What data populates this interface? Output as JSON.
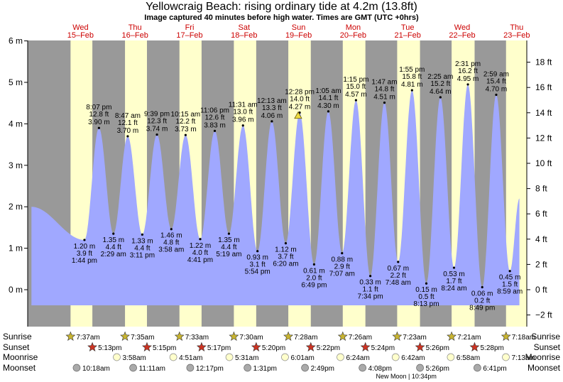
{
  "title": "Yellowcraig Beach: rising  ordinary tide at 4.2m (13.8ft)",
  "subtitle": "Image captured 40 minutes before high water. Times are GMT (UTC +0hrs)",
  "colors": {
    "night": "#999999",
    "day": "#ffffcc",
    "water": "#a0a8ff",
    "day_label": "#cc0000",
    "sun_marker": "#c8b430",
    "sunset_marker": "#cc3322",
    "moonrise_marker": "#ffffcc",
    "moonset_marker": "#aaaaaa"
  },
  "days": [
    {
      "weekday": "Wed",
      "date": "15–Feb"
    },
    {
      "weekday": "Thu",
      "date": "16–Feb"
    },
    {
      "weekday": "Fri",
      "date": "17–Feb"
    },
    {
      "weekday": "Sat",
      "date": "18–Feb"
    },
    {
      "weekday": "Sun",
      "date": "19–Feb"
    },
    {
      "weekday": "Mon",
      "date": "20–Feb"
    },
    {
      "weekday": "Tue",
      "date": "21–Feb"
    },
    {
      "weekday": "Wed",
      "date": "22–Feb"
    },
    {
      "weekday": "Thu",
      "date": "23–Feb"
    }
  ],
  "chart_data": {
    "type": "area",
    "title": "Yellowcraig Beach: rising  ordinary tide at 4.2m (13.8ft)",
    "left_axis": {
      "unit": "m",
      "ylim": [
        -0.75,
        6.0
      ],
      "ticks": [
        0,
        1,
        2,
        3,
        4,
        5,
        6
      ],
      "tick_labels": [
        "0 m",
        "1 m",
        "2 m",
        "3 m",
        "4 m",
        "5 m",
        "6 m"
      ]
    },
    "right_axis": {
      "unit": "ft",
      "ticks": [
        -2,
        0,
        2,
        4,
        6,
        8,
        10,
        12,
        14,
        16,
        18
      ],
      "tick_labels": [
        "−2 ft",
        "0 ft",
        "2 ft",
        "4 ft",
        "6 ft",
        "8 ft",
        "10 ft",
        "12 ft",
        "14 ft",
        "16 ft",
        "18 ft"
      ]
    },
    "x_range_days": [
      14.45,
      23.65
    ],
    "day_bands": [
      {
        "day": 15,
        "sunrise": "7:37am",
        "sunset": "5:13pm"
      },
      {
        "day": 16,
        "sunrise": "7:35am",
        "sunset": "5:15pm"
      },
      {
        "day": 17,
        "sunrise": "7:33am",
        "sunset": "5:17pm"
      },
      {
        "day": 18,
        "sunrise": "7:30am",
        "sunset": "5:20pm"
      },
      {
        "day": 19,
        "sunrise": "7:28am",
        "sunset": "5:22pm"
      },
      {
        "day": 20,
        "sunrise": "7:26am",
        "sunset": "5:24pm"
      },
      {
        "day": 21,
        "sunrise": "7:23am",
        "sunset": "5:26pm"
      },
      {
        "day": 22,
        "sunrise": "7:21am",
        "sunset": "5:28pm"
      },
      {
        "day": 23,
        "sunrise": "7:18am",
        "sunset": ""
      }
    ],
    "tides": [
      {
        "day": 15,
        "time": "1:44 pm",
        "hm": "13:44",
        "m": "1.20 m",
        "ft": "3.9 ft",
        "v": 1.2,
        "kind": "low"
      },
      {
        "day": 15,
        "time": "8:07 pm",
        "hm": "20:07",
        "m": "3.90 m",
        "ft": "12.8 ft",
        "v": 3.9,
        "kind": "high"
      },
      {
        "day": 16,
        "time": "2:29 am",
        "hm": "02:29",
        "m": "1.35 m",
        "ft": "4.4 ft",
        "v": 1.35,
        "kind": "low"
      },
      {
        "day": 16,
        "time": "8:47 am",
        "hm": "08:47",
        "m": "3.70 m",
        "ft": "12.1 ft",
        "v": 3.7,
        "kind": "high"
      },
      {
        "day": 16,
        "time": "3:11 pm",
        "hm": "15:11",
        "m": "1.33 m",
        "ft": "4.4 ft",
        "v": 1.33,
        "kind": "low"
      },
      {
        "day": 16,
        "time": "9:39 pm",
        "hm": "21:39",
        "m": "3.74 m",
        "ft": "12.3 ft",
        "v": 3.74,
        "kind": "high"
      },
      {
        "day": 17,
        "time": "3:58 am",
        "hm": "03:58",
        "m": "1.46 m",
        "ft": "4.8 ft",
        "v": 1.46,
        "kind": "low"
      },
      {
        "day": 17,
        "time": "10:15 am",
        "hm": "10:15",
        "m": "3.73 m",
        "ft": "12.2 ft",
        "v": 3.73,
        "kind": "high"
      },
      {
        "day": 17,
        "time": "4:41 pm",
        "hm": "16:41",
        "m": "1.22 m",
        "ft": "4.0 ft",
        "v": 1.22,
        "kind": "low"
      },
      {
        "day": 17,
        "time": "11:06 pm",
        "hm": "23:06",
        "m": "3.83 m",
        "ft": "12.6 ft",
        "v": 3.83,
        "kind": "high"
      },
      {
        "day": 18,
        "time": "5:19 am",
        "hm": "05:19",
        "m": "1.35 m",
        "ft": "4.4 ft",
        "v": 1.35,
        "kind": "low"
      },
      {
        "day": 18,
        "time": "11:31 am",
        "hm": "11:31",
        "m": "3.96 m",
        "ft": "13.0 ft",
        "v": 3.96,
        "kind": "high"
      },
      {
        "day": 18,
        "time": "5:54 pm",
        "hm": "17:54",
        "m": "0.93 m",
        "ft": "3.1 ft",
        "v": 0.93,
        "kind": "low"
      },
      {
        "day": 19,
        "time": "12:13 am",
        "hm": "00:13",
        "m": "4.06 m",
        "ft": "13.3 ft",
        "v": 4.06,
        "kind": "high"
      },
      {
        "day": 19,
        "time": "6:20 am",
        "hm": "06:20",
        "m": "1.12 m",
        "ft": "3.7 ft",
        "v": 1.12,
        "kind": "low"
      },
      {
        "day": 19,
        "time": "12:28 pm",
        "hm": "12:28",
        "m": "4.27 m",
        "ft": "14.0 ft",
        "v": 4.27,
        "kind": "high"
      },
      {
        "day": 19,
        "time": "6:49 pm",
        "hm": "18:49",
        "m": "0.61 m",
        "ft": "2.0 ft",
        "v": 0.61,
        "kind": "low"
      },
      {
        "day": 20,
        "time": "1:05 am",
        "hm": "01:05",
        "m": "4.30 m",
        "ft": "14.1 ft",
        "v": 4.3,
        "kind": "high"
      },
      {
        "day": 20,
        "time": "7:07 am",
        "hm": "07:07",
        "m": "0.88 m",
        "ft": "2.9 ft",
        "v": 0.88,
        "kind": "low"
      },
      {
        "day": 20,
        "time": "1:15 pm",
        "hm": "13:15",
        "m": "4.57 m",
        "ft": "15.0 ft",
        "v": 4.57,
        "kind": "high"
      },
      {
        "day": 20,
        "time": "7:34 pm",
        "hm": "19:34",
        "m": "0.33 m",
        "ft": "1.1 ft",
        "v": 0.33,
        "kind": "low"
      },
      {
        "day": 21,
        "time": "1:47 am",
        "hm": "01:47",
        "m": "4.51 m",
        "ft": "14.8 ft",
        "v": 4.51,
        "kind": "high"
      },
      {
        "day": 21,
        "time": "7:48 am",
        "hm": "07:48",
        "m": "0.67 m",
        "ft": "2.2 ft",
        "v": 0.67,
        "kind": "low"
      },
      {
        "day": 21,
        "time": "1:55 pm",
        "hm": "13:55",
        "m": "4.81 m",
        "ft": "15.8 ft",
        "v": 4.81,
        "kind": "high"
      },
      {
        "day": 21,
        "time": "8:13 pm",
        "hm": "20:13",
        "m": "0.15 m",
        "ft": "0.5 ft",
        "v": 0.15,
        "kind": "low"
      },
      {
        "day": 22,
        "time": "2:25 am",
        "hm": "02:25",
        "m": "4.64 m",
        "ft": "15.2 ft",
        "v": 4.64,
        "kind": "high"
      },
      {
        "day": 22,
        "time": "8:24 am",
        "hm": "08:24",
        "m": "0.53 m",
        "ft": "1.7 ft",
        "v": 0.53,
        "kind": "low"
      },
      {
        "day": 22,
        "time": "2:31 pm",
        "hm": "14:31",
        "m": "4.95 m",
        "ft": "16.2 ft",
        "v": 4.95,
        "kind": "high"
      },
      {
        "day": 22,
        "time": "8:49 pm",
        "hm": "20:49",
        "m": "0.06 m",
        "ft": "0.2 ft",
        "v": 0.06,
        "kind": "low"
      },
      {
        "day": 23,
        "time": "2:59 am",
        "hm": "02:59",
        "m": "4.70 m",
        "ft": "15.4 ft",
        "v": 4.7,
        "kind": "high"
      },
      {
        "day": 23,
        "time": "8:59 am",
        "hm": "08:59",
        "m": "0.45 m",
        "ft": "1.5 ft",
        "v": 0.45,
        "kind": "low"
      }
    ],
    "current_marker": {
      "day": 19,
      "hm": "11:48",
      "v": 4.2
    }
  },
  "footer": {
    "row_labels": [
      "Sunrise",
      "Sunset",
      "Moonrise",
      "Moonset"
    ],
    "sunrise": [
      {
        "day": 15,
        "text": "7:37am"
      },
      {
        "day": 16,
        "text": "7:35am"
      },
      {
        "day": 17,
        "text": "7:33am"
      },
      {
        "day": 18,
        "text": "7:30am"
      },
      {
        "day": 19,
        "text": "7:28am"
      },
      {
        "day": 20,
        "text": "7:26am"
      },
      {
        "day": 21,
        "text": "7:23am"
      },
      {
        "day": 22,
        "text": "7:21am"
      },
      {
        "day": 23,
        "text": "7:18am"
      }
    ],
    "sunset": [
      {
        "day": 15,
        "text": "5:13pm"
      },
      {
        "day": 16,
        "text": "5:15pm"
      },
      {
        "day": 17,
        "text": "5:17pm"
      },
      {
        "day": 18,
        "text": "5:20pm"
      },
      {
        "day": 19,
        "text": "5:22pm"
      },
      {
        "day": 20,
        "text": "5:24pm"
      },
      {
        "day": 21,
        "text": "5:26pm"
      },
      {
        "day": 22,
        "text": "5:28pm"
      }
    ],
    "moonrise": [
      {
        "day": 16,
        "text": "3:58am"
      },
      {
        "day": 17,
        "text": "4:51am"
      },
      {
        "day": 18,
        "text": "5:31am"
      },
      {
        "day": 19,
        "text": "6:01am"
      },
      {
        "day": 20,
        "text": "6:24am"
      },
      {
        "day": 21,
        "text": "6:42am"
      },
      {
        "day": 22,
        "text": "6:58am"
      },
      {
        "day": 23,
        "text": "7:13am"
      }
    ],
    "moonset": [
      {
        "day": 15,
        "text": "10:18am"
      },
      {
        "day": 16,
        "text": "11:11am"
      },
      {
        "day": 17,
        "text": "12:17pm"
      },
      {
        "day": 18,
        "text": "1:31pm"
      },
      {
        "day": 19,
        "text": "2:49pm"
      },
      {
        "day": 20,
        "text": "4:08pm"
      },
      {
        "day": 21,
        "text": "5:26pm"
      },
      {
        "day": 22,
        "text": "6:41pm"
      }
    ],
    "new_moon": "New Moon | 10:34pm"
  }
}
